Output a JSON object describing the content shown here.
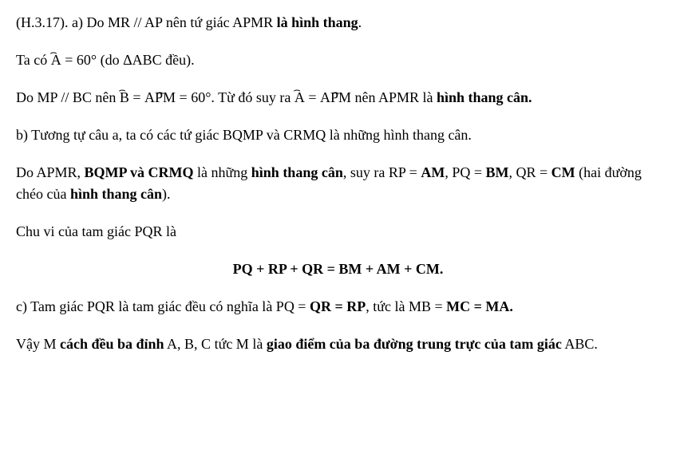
{
  "line1": {
    "ref": "(H.3.17). a) Do MR // AP nên tứ giác APMR ",
    "b": "là hình thang",
    "dot": "."
  },
  "line2": {
    "a": "Ta có ",
    "A": "A",
    "eq": " = 60° (do ΔABC đều)."
  },
  "line3": {
    "a": "Do MP // BC nên ",
    "B": "B",
    "eq1": " = ",
    "APM": "APM",
    "angle60": " = 60°. Từ đó suy ra ",
    "A2": "A",
    "eq2": " = ",
    "APM2": "APM",
    "tail": " nên APMR là ",
    "b": "hình thang cân."
  },
  "line4": "b) Tương tự câu a, ta có các tứ giác BQMP và CRMQ là những hình thang cân.",
  "line5": {
    "a": "Do APMR, ",
    "b1": "BQMP và CRMQ",
    "mid1": " là những ",
    "b2": "hình thang cân",
    "mid2": ", suy ra RP = ",
    "b3": "AM",
    "mid3": ", PQ = ",
    "b4": "BM",
    "mid4": ", QR = ",
    "b5": "CM",
    "mid5": " (hai đường chéo của ",
    "b6": "hình thang cân",
    "tail": ")."
  },
  "line6": "Chu vi của tam giác PQR là",
  "formula": "PQ + RP + QR = BM + AM + CM.",
  "line7": {
    "a": "c) Tam giác PQR là tam giác đều có nghĩa là PQ = ",
    "b1": "QR = RP",
    "mid1": ", tức là MB = ",
    "b2": "MC = MA."
  },
  "line8": {
    "a": "Vậy M ",
    "b1": "cách đều ba đỉnh",
    "mid1": " A, B, C tức M là ",
    "b2": "giao điểm của ba đường trung trực của tam giác",
    "tail": " ABC."
  }
}
